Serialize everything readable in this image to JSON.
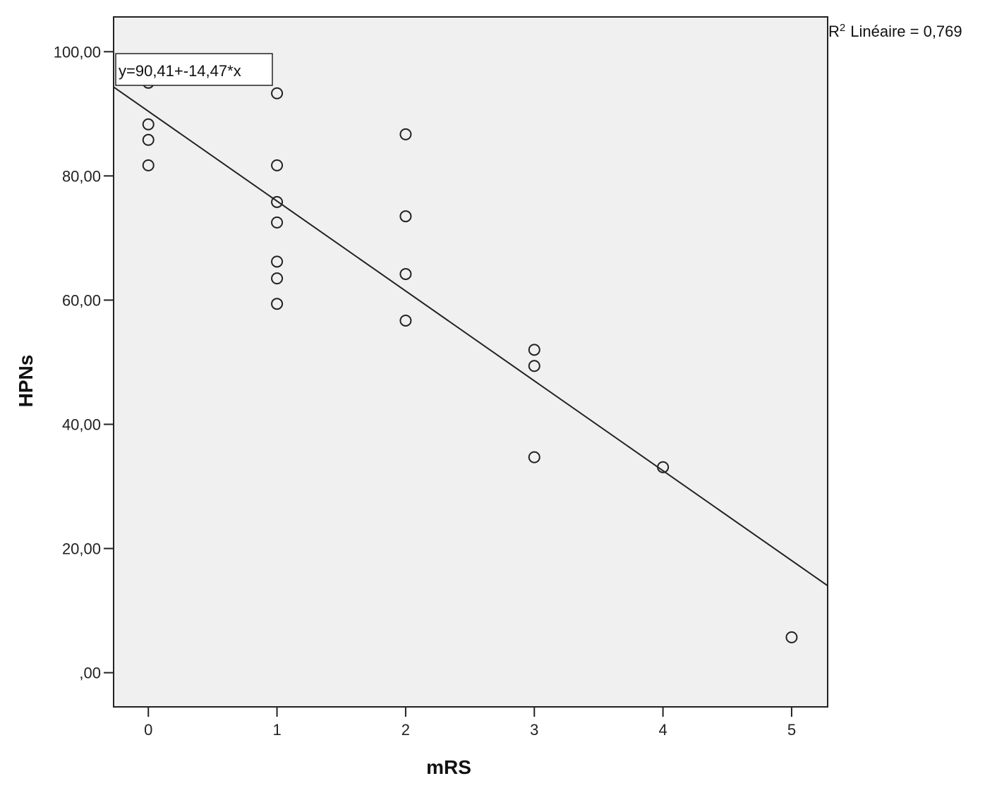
{
  "chart_data": {
    "type": "scatter",
    "xlabel": "mRS",
    "ylabel": "HPNs",
    "xlim": [
      -0.27,
      5.28
    ],
    "ylim": [
      -5.5,
      105.6
    ],
    "x_ticks": [
      0,
      1,
      2,
      3,
      4,
      5
    ],
    "x_tick_labels": [
      "0",
      "1",
      "2",
      "3",
      "4",
      "5"
    ],
    "y_ticks": [
      0,
      20,
      40,
      60,
      80,
      100
    ],
    "y_tick_labels": [
      ",00",
      "20,00",
      "40,00",
      "60,00",
      "80,00",
      "100,00"
    ],
    "grid": false,
    "points": [
      {
        "x": 0,
        "y": 95.0
      },
      {
        "x": 0,
        "y": 88.3
      },
      {
        "x": 0,
        "y": 85.8
      },
      {
        "x": 0,
        "y": 81.7
      },
      {
        "x": 1,
        "y": 93.3
      },
      {
        "x": 1,
        "y": 81.7
      },
      {
        "x": 1,
        "y": 75.8
      },
      {
        "x": 1,
        "y": 72.5
      },
      {
        "x": 1,
        "y": 66.2
      },
      {
        "x": 1,
        "y": 63.5
      },
      {
        "x": 1,
        "y": 59.4
      },
      {
        "x": 2,
        "y": 86.7
      },
      {
        "x": 2,
        "y": 73.5
      },
      {
        "x": 2,
        "y": 64.2
      },
      {
        "x": 2,
        "y": 56.7
      },
      {
        "x": 3,
        "y": 52.0
      },
      {
        "x": 3,
        "y": 49.4
      },
      {
        "x": 3,
        "y": 34.7
      },
      {
        "x": 4,
        "y": 33.1
      },
      {
        "x": 5,
        "y": 5.7
      }
    ],
    "fit_line": {
      "intercept": 90.41,
      "slope": -14.47
    },
    "annotations": {
      "equation": "y=90,41+-14,47*x",
      "r2_label": "Linéaire = 0,769",
      "r2_prefix": "R",
      "r2_exponent": "2"
    },
    "colors": {
      "plot_background": "#f0f0f0",
      "marker_stroke": "#222222",
      "line": "#222222"
    }
  }
}
